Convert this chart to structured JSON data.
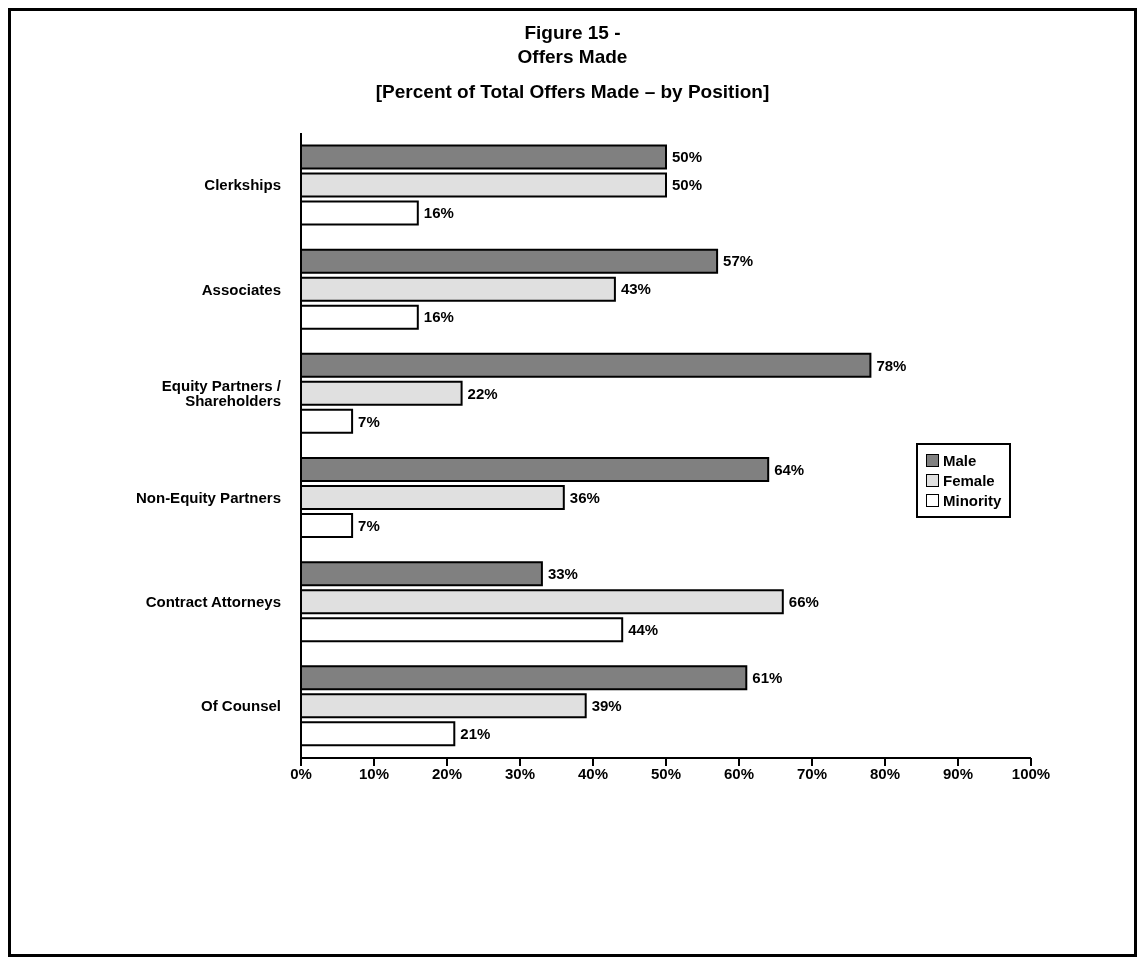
{
  "chart_data": {
    "type": "bar",
    "orientation": "horizontal",
    "title": "Figure 15 -\nOffers Made",
    "subtitle": "[Percent of Total Offers Made – by Position]",
    "categories": [
      "Clerkships",
      "Associates",
      "Equity Partners / Shareholders",
      "Non-Equity Partners",
      "Contract Attorneys",
      "Of Counsel"
    ],
    "series": [
      {
        "name": "Male",
        "color": "#808080",
        "values": [
          50,
          57,
          78,
          64,
          33,
          61
        ],
        "value_labels": [
          "50%",
          "57%",
          "78%",
          "64%",
          "33%",
          "61%"
        ]
      },
      {
        "name": "Female",
        "color": "#e0e0e0",
        "values": [
          50,
          43,
          22,
          36,
          66,
          39
        ],
        "value_labels": [
          "50%",
          "43%",
          "22%",
          "36%",
          "66%",
          "39%"
        ]
      },
      {
        "name": "Minority",
        "color": "#ffffff",
        "values": [
          16,
          16,
          7,
          7,
          44,
          21
        ],
        "value_labels": [
          "16%",
          "16%",
          "7%",
          "7%",
          "44%",
          "21%"
        ]
      }
    ],
    "xlim": [
      0,
      100
    ],
    "xticks": [
      {
        "value": 0,
        "label": "0%"
      },
      {
        "value": 10,
        "label": "10%"
      },
      {
        "value": 20,
        "label": "20%"
      },
      {
        "value": 30,
        "label": "30%"
      },
      {
        "value": 40,
        "label": "40%"
      },
      {
        "value": 50,
        "label": "50%"
      },
      {
        "value": 60,
        "label": "60%"
      },
      {
        "value": 70,
        "label": "70%"
      },
      {
        "value": 80,
        "label": "80%"
      },
      {
        "value": 90,
        "label": "90%"
      },
      {
        "value": 100,
        "label": "100%"
      }
    ],
    "legend": "right"
  }
}
